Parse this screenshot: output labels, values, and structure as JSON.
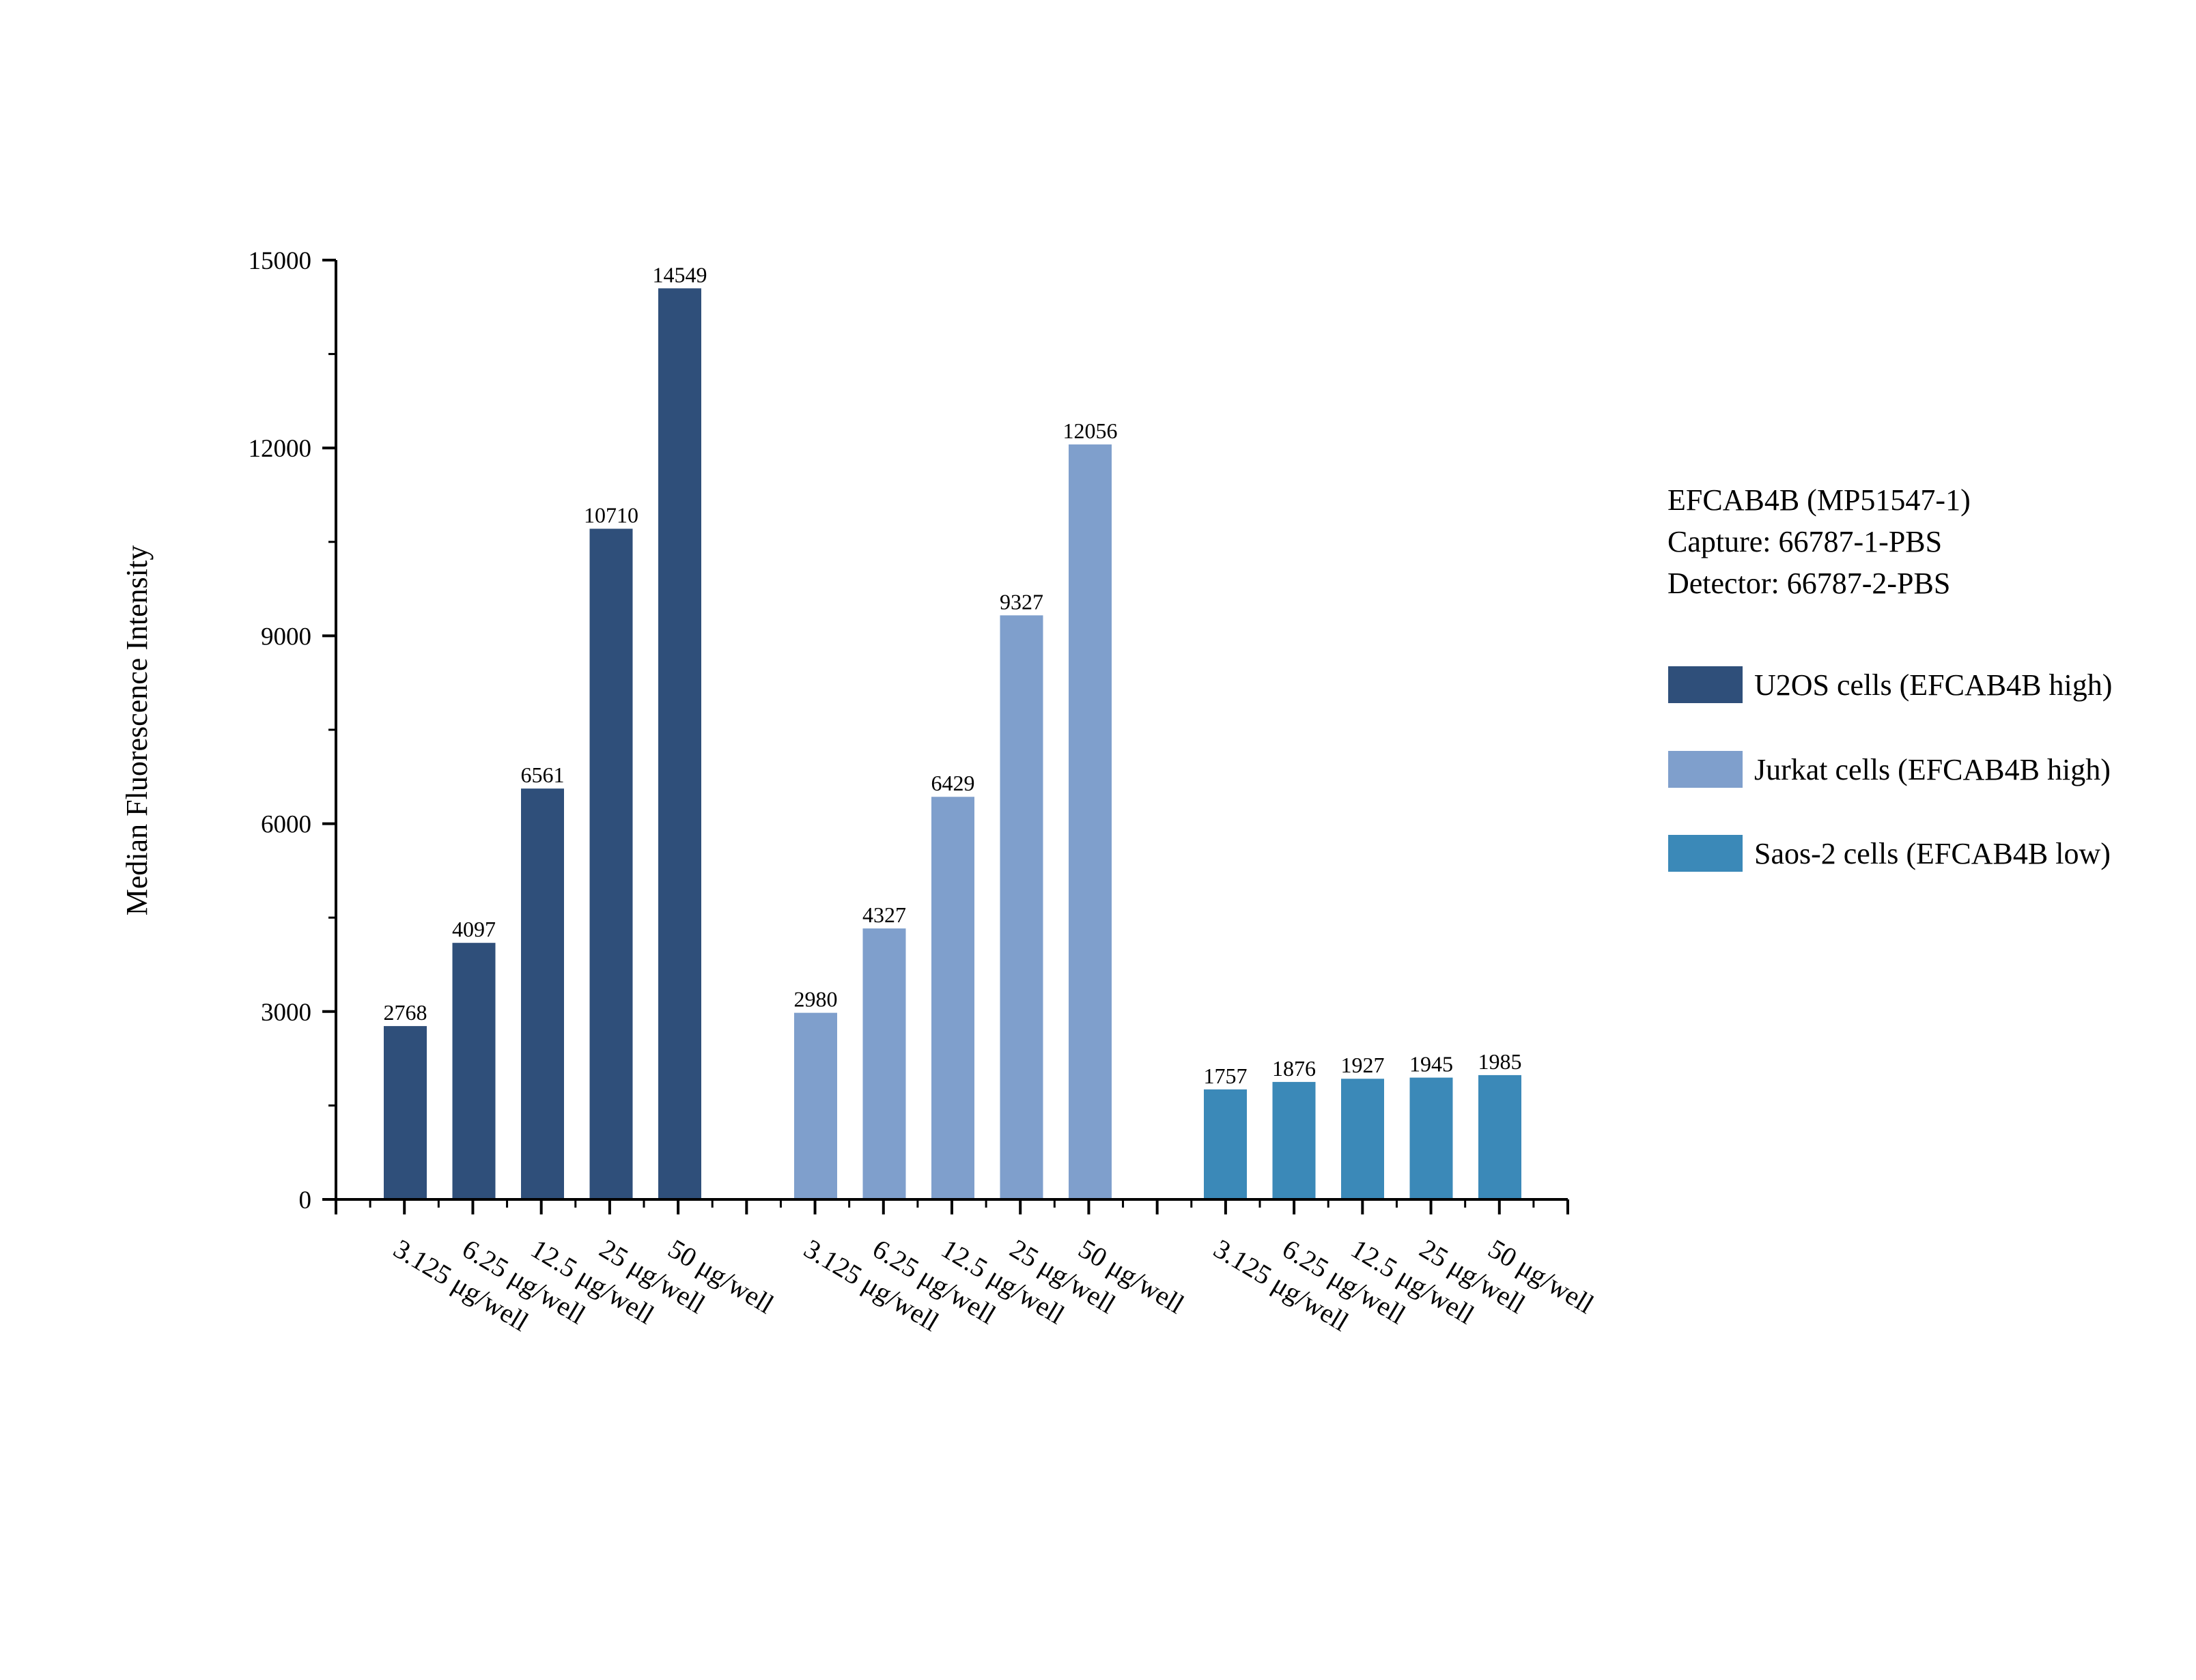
{
  "chart_data": {
    "type": "bar",
    "title": "",
    "xlabel": "",
    "ylabel": "Median Fluorescence Intensity",
    "ylim": [
      0,
      15000
    ],
    "yticks": [
      0,
      3000,
      6000,
      9000,
      12000,
      15000
    ],
    "yticks_display": [
      "0",
      "3000",
      "6000",
      "9000",
      "12000",
      "15000"
    ],
    "grid": false,
    "legend_position": "right",
    "categories": [
      "3.125 μg/well",
      "6.25 μg/well",
      "12.5 μg/well",
      "25 μg/well",
      "50 μg/well"
    ],
    "series": [
      {
        "name": "U2OS cells (EFCAB4B high)",
        "color": "#2f4f7a",
        "values": [
          2768,
          4097,
          6561,
          10710,
          14549
        ]
      },
      {
        "name": "Jurkat cells (EFCAB4B high)",
        "color": "#7f9fcc",
        "values": [
          2980,
          4327,
          6429,
          9327,
          12056
        ]
      },
      {
        "name": "Saos-2 cells (EFCAB4B low)",
        "color": "#3b89b8",
        "values": [
          1757,
          1876,
          1927,
          1945,
          1985
        ]
      }
    ],
    "annotation": {
      "lines": [
        "EFCAB4B (MP51547-1)",
        "Capture: 66787-1-PBS",
        "Detector: 66787-2-PBS"
      ]
    }
  }
}
